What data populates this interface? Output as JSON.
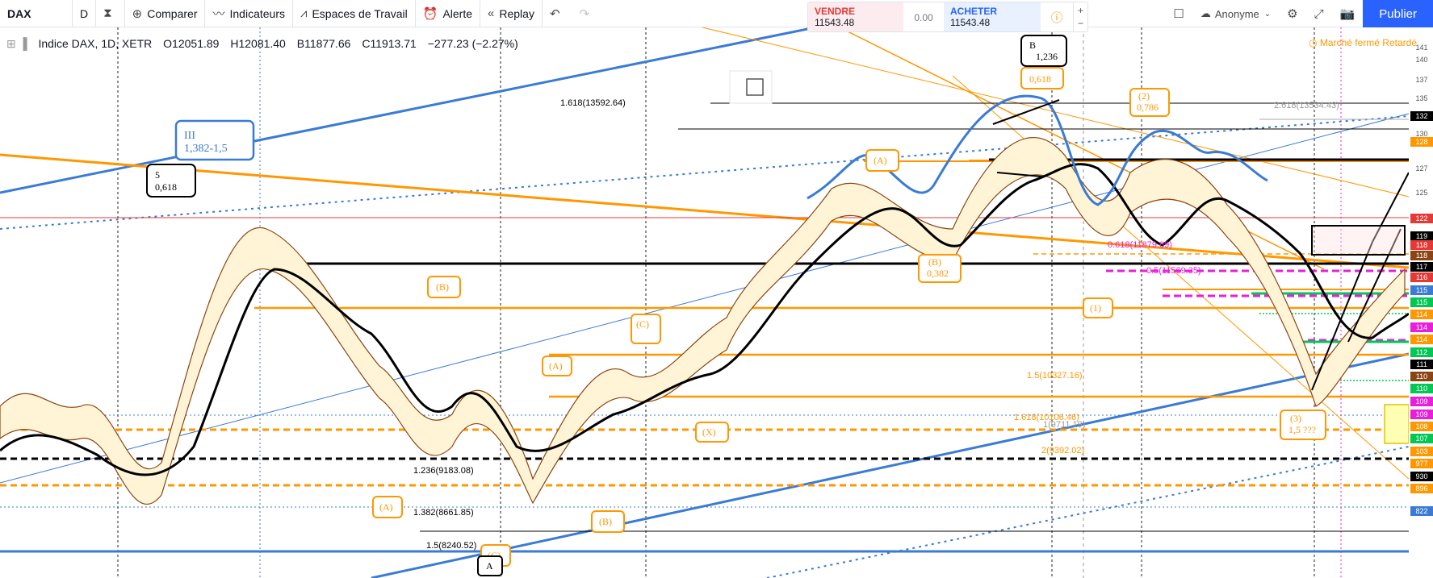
{
  "toolbar": {
    "symbol": "DAX",
    "interval": "D",
    "compare": "Comparer",
    "indicators": "Indicateurs",
    "workspaces": "Espaces de Travail",
    "alert": "Alerte",
    "replay": "Replay"
  },
  "trade": {
    "sell_label": "VENDRE",
    "sell_price": "11543.48",
    "spread": "0.00",
    "buy_label": "ACHETER",
    "buy_price": "11543.48"
  },
  "account": {
    "name": "Anonyme",
    "publish": "Publier"
  },
  "legend": {
    "title": "Indice DAX, 1D, XETR",
    "open": "O12051.89",
    "high": "H12081.40",
    "low": "B11877.66",
    "close": "C11913.71",
    "change": "−277.23 (−2.27%)"
  },
  "market_status": "Marché fermé",
  "delayed": "Retardé",
  "annotations": {
    "wave_iii": "III",
    "wave_iii_ratio": "1,382-1,5",
    "wave_5": "5",
    "wave_5_ratio": "0,618",
    "b_top": "B",
    "b_top_ratio": "1,236",
    "c_top_ratio": "0,618",
    "wave2_ratio": "0,786",
    "b_ratio": "0,382",
    "wave3_ratio": "1,5 ???",
    "A": "(A)",
    "B": "(B)",
    "C": "(C)",
    "X": "(X)",
    "one": "(1)",
    "two": "(2)",
    "three": "(3)",
    "A_bottom": "A"
  },
  "fib_labels": {
    "f1618_top": "1.618(13592.64)",
    "f2618": "2.618(13534.43)",
    "f0618": "0.618(11879.69)",
    "f05": "0.5(11569.35)",
    "f15": "1.5(10327.16)",
    "f1618": "1.618(10106.46)",
    "f1": "1(9711.19)",
    "f2": "2(9392.02)",
    "f1236": "1.236(9183.08)",
    "f1382": "1.382(8661.85)",
    "f15b": "1.5(8240.52)"
  },
  "price_axis": [
    "141",
    "140",
    "137",
    "135",
    "132",
    "130",
    "128",
    "127",
    "125",
    "122",
    "119",
    "118",
    "118",
    "117",
    "116",
    "115",
    "115",
    "114",
    "114",
    "114",
    "112",
    "111",
    "110",
    "110",
    "109",
    "109",
    "108",
    "107",
    "103",
    "977",
    "930",
    "896",
    "822"
  ],
  "colors": {
    "orange": "#ff9800",
    "blue": "#3a7bd5",
    "black": "#000000",
    "magenta": "#e91edb",
    "green": "#00c853",
    "red": "#e53935"
  }
}
